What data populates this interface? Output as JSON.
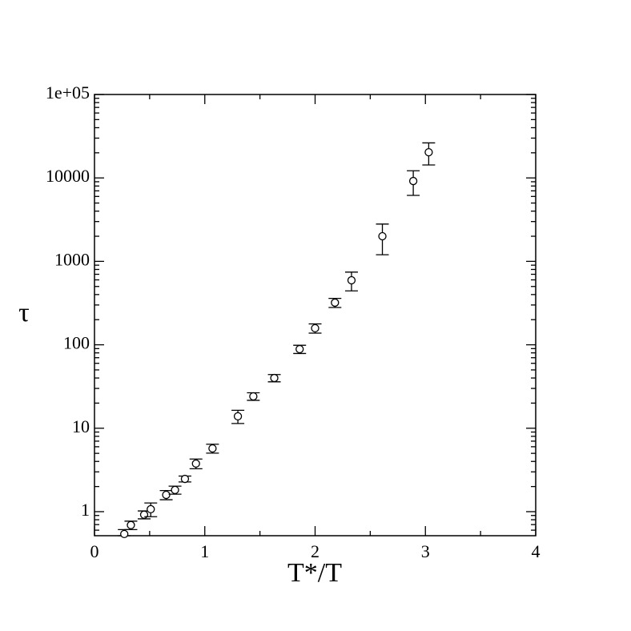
{
  "chart_data": {
    "type": "scatter",
    "x_label": "T*/T",
    "y_label": "τ",
    "xlim": [
      0,
      4
    ],
    "xticks": [
      0,
      1,
      2,
      3,
      4
    ],
    "ylim": [
      0.515,
      100000
    ],
    "log_y": true,
    "yticks": [
      1,
      10,
      100,
      1000,
      10000,
      {
        "value": 100000,
        "label": "1e+05"
      }
    ],
    "color": "#000000",
    "x": [
      0.27,
      0.33,
      0.45,
      0.51,
      0.65,
      0.73,
      0.82,
      0.92,
      1.07,
      1.3,
      1.44,
      1.63,
      1.86,
      2.0,
      2.18,
      2.33,
      2.61,
      2.89,
      3.03
    ],
    "values": [
      0.54,
      0.69,
      0.92,
      1.07,
      1.59,
      1.82,
      2.47,
      3.77,
      5.73,
      13.9,
      24.1,
      40,
      88.7,
      158,
      320,
      593,
      2000,
      9180,
      20300
    ],
    "errors": [
      0.07,
      0.08,
      0.1,
      0.2,
      0.2,
      0.2,
      0.2,
      0.5,
      0.7,
      2.5,
      2.5,
      4,
      10,
      20,
      40,
      150,
      800,
      3000,
      6000
    ]
  }
}
